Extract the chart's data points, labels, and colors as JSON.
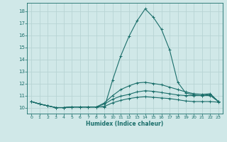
{
  "xlabel": "Humidex (Indice chaleur)",
  "xlim": [
    -0.5,
    23.5
  ],
  "ylim": [
    9.5,
    18.7
  ],
  "yticks": [
    10,
    11,
    12,
    13,
    14,
    15,
    16,
    17,
    18
  ],
  "xticks": [
    0,
    1,
    2,
    3,
    4,
    5,
    6,
    7,
    8,
    9,
    10,
    11,
    12,
    13,
    14,
    15,
    16,
    17,
    18,
    19,
    20,
    21,
    22,
    23
  ],
  "bg_color": "#d0e8e8",
  "grid_color": "#b8d4d4",
  "line_color": "#1a6e6a",
  "lines": [
    {
      "x": [
        0,
        1,
        2,
        3,
        4,
        5,
        6,
        7,
        8,
        9,
        10,
        11,
        12,
        13,
        14,
        15,
        16,
        17,
        18,
        19,
        20,
        21,
        22,
        23
      ],
      "y": [
        10.5,
        10.3,
        10.15,
        10.0,
        10.0,
        10.05,
        10.05,
        10.05,
        10.05,
        10.05,
        12.3,
        14.3,
        15.9,
        17.2,
        18.2,
        17.5,
        16.5,
        14.8,
        12.1,
        11.2,
        11.05,
        11.0,
        11.1,
        10.5
      ]
    },
    {
      "x": [
        0,
        1,
        2,
        3,
        4,
        5,
        6,
        7,
        8,
        9,
        10,
        11,
        12,
        13,
        14,
        15,
        16,
        17,
        18,
        19,
        20,
        21,
        22,
        23
      ],
      "y": [
        10.5,
        10.3,
        10.15,
        10.0,
        10.0,
        10.05,
        10.05,
        10.05,
        10.05,
        10.4,
        11.0,
        11.5,
        11.8,
        12.05,
        12.1,
        12.0,
        11.9,
        11.7,
        11.5,
        11.3,
        11.15,
        11.1,
        11.15,
        10.5
      ]
    },
    {
      "x": [
        0,
        1,
        2,
        3,
        4,
        5,
        6,
        7,
        8,
        9,
        10,
        11,
        12,
        13,
        14,
        15,
        16,
        17,
        18,
        19,
        20,
        21,
        22,
        23
      ],
      "y": [
        10.5,
        10.3,
        10.15,
        10.0,
        10.0,
        10.05,
        10.05,
        10.05,
        10.05,
        10.3,
        10.7,
        10.95,
        11.1,
        11.3,
        11.4,
        11.35,
        11.25,
        11.15,
        11.05,
        11.0,
        11.0,
        11.0,
        11.0,
        10.5
      ]
    },
    {
      "x": [
        0,
        1,
        2,
        3,
        4,
        5,
        6,
        7,
        8,
        9,
        10,
        11,
        12,
        13,
        14,
        15,
        16,
        17,
        18,
        19,
        20,
        21,
        22,
        23
      ],
      "y": [
        10.5,
        10.3,
        10.15,
        10.0,
        10.0,
        10.05,
        10.05,
        10.05,
        10.05,
        10.1,
        10.4,
        10.6,
        10.75,
        10.85,
        10.9,
        10.85,
        10.8,
        10.75,
        10.65,
        10.55,
        10.5,
        10.5,
        10.5,
        10.45
      ]
    }
  ],
  "figsize": [
    3.2,
    2.0
  ],
  "dpi": 100
}
